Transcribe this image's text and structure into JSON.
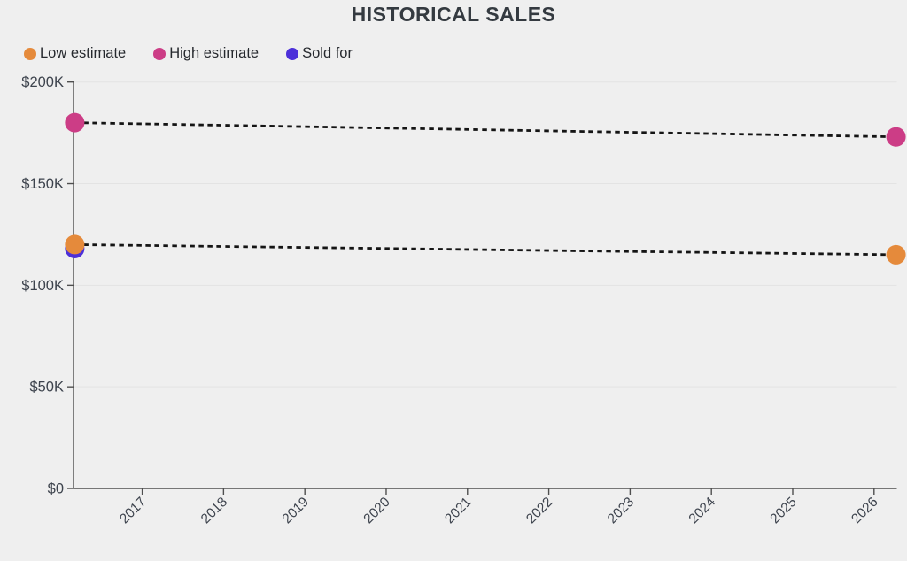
{
  "header": {
    "title": "HISTORICAL SALES"
  },
  "legend": {
    "items": [
      {
        "label": "Low estimate",
        "color": "#E58A3B"
      },
      {
        "label": "High estimate",
        "color": "#CC3D86"
      },
      {
        "label": "Sold for",
        "color": "#4C30D9"
      }
    ]
  },
  "colors": {
    "background": "#EFEFEF",
    "title_text": "#343A40",
    "legend_text": "#26292E",
    "axis": "#4F4F4F",
    "grid": "#E3E3E3",
    "tick_text": "#3D434D",
    "connector": "#141414"
  },
  "chart_data": {
    "type": "scatter",
    "title": "HISTORICAL SALES",
    "xlabel": "",
    "ylabel": "",
    "xlim": [
      2016.155,
      2026.28
    ],
    "ylim": [
      0,
      200000
    ],
    "grid": "horizontal-only",
    "legend_position": "top-left",
    "x_ticks": [
      {
        "value": 2017,
        "label": "2017"
      },
      {
        "value": 2018,
        "label": "2018"
      },
      {
        "value": 2019,
        "label": "2019"
      },
      {
        "value": 2020,
        "label": "2020"
      },
      {
        "value": 2021,
        "label": "2021"
      },
      {
        "value": 2022,
        "label": "2022"
      },
      {
        "value": 2023,
        "label": "2023"
      },
      {
        "value": 2024,
        "label": "2024"
      },
      {
        "value": 2025,
        "label": "2025"
      },
      {
        "value": 2026,
        "label": "2026"
      }
    ],
    "y_ticks": [
      {
        "value": 0,
        "label": "$0"
      },
      {
        "value": 50000,
        "label": "$50K"
      },
      {
        "value": 100000,
        "label": "$100K"
      },
      {
        "value": 150000,
        "label": "$150K"
      },
      {
        "value": 200000,
        "label": "$200K"
      }
    ],
    "connector_style": {
      "color": "#141414",
      "dash": [
        5.5,
        4.5
      ],
      "width": 2.8
    },
    "series": [
      {
        "name": "Low estimate",
        "color": "#E58A3B",
        "dashed_connector": true,
        "points": [
          {
            "x": 2016.17,
            "y": 120000
          },
          {
            "x": 2026.27,
            "y": 115000
          }
        ]
      },
      {
        "name": "High estimate",
        "color": "#CC3D86",
        "dashed_connector": true,
        "points": [
          {
            "x": 2016.17,
            "y": 180000
          },
          {
            "x": 2026.27,
            "y": 173000
          }
        ]
      },
      {
        "name": "Sold for",
        "color": "#4C30D9",
        "dashed_connector": false,
        "points": [
          {
            "x": 2016.17,
            "y": 118000
          }
        ]
      }
    ]
  }
}
